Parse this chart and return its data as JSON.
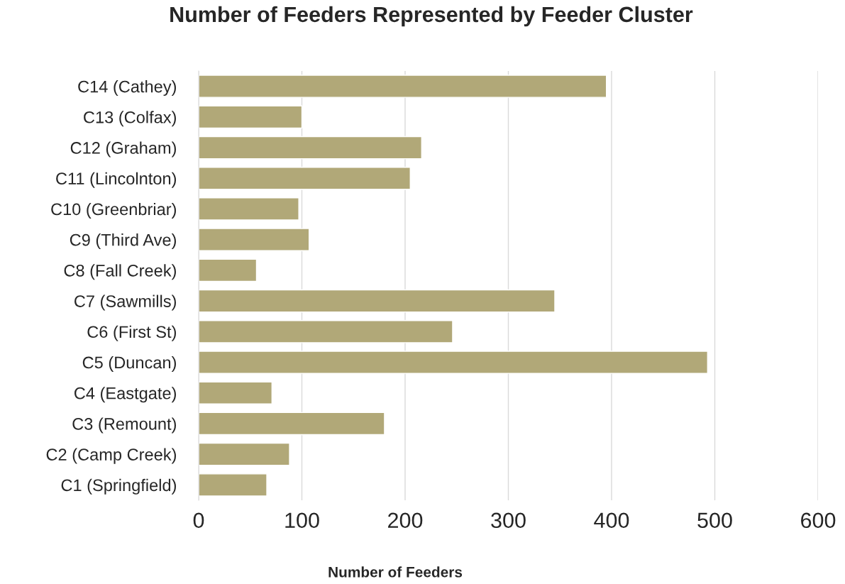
{
  "chart_data": {
    "type": "bar",
    "orientation": "horizontal",
    "title": "Number of Feeders Represented by Feeder Cluster",
    "xlabel": "Number of Feeders",
    "categories": [
      "C14 (Cathey)",
      "C13 (Colfax)",
      "C12 (Graham)",
      "C11 (Lincolnton)",
      "C10 (Greenbriar)",
      "C9 (Third Ave)",
      "C8 (Fall Creek)",
      "C7 (Sawmills)",
      "C6 (First St)",
      "C5 (Duncan)",
      "C4 (Eastgate)",
      "C3 (Remount)",
      "C2 (Camp Creek)",
      "C1 (Springfield)"
    ],
    "values": [
      395,
      100,
      216,
      205,
      97,
      107,
      56,
      345,
      246,
      493,
      71,
      180,
      88,
      66
    ],
    "color": "#b1a878",
    "xlim": [
      0,
      600
    ],
    "xticks": [
      0,
      100,
      200,
      300,
      400,
      500,
      600
    ],
    "grid": "x",
    "legend": false
  }
}
